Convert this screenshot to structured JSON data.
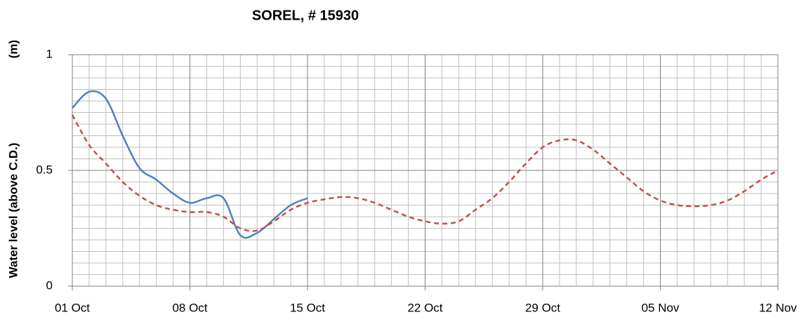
{
  "chart_data": {
    "type": "line",
    "title": "SOREL, # 15930",
    "y_label": "Water level (above C.D.)",
    "y_unit": "(m)",
    "categories": [
      "01 Oct",
      null,
      null,
      null,
      null,
      null,
      null,
      "08 Oct",
      null,
      null,
      null,
      null,
      null,
      null,
      "15 Oct",
      null,
      null,
      null,
      null,
      null,
      null,
      "22 Oct",
      null,
      null,
      null,
      null,
      null,
      null,
      "29 Oct",
      null,
      null,
      null,
      null,
      null,
      null,
      "05 Nov",
      null,
      null,
      null,
      null,
      null,
      null,
      "12 Nov"
    ],
    "series": [
      {
        "color": "#4f81bd",
        "dash": false,
        "values": [
          0.77,
          0.84,
          0.81,
          0.65,
          0.51,
          0.46,
          0.4,
          0.36,
          0.38,
          0.38,
          0.22,
          0.23,
          0.29,
          0.35,
          0.38,
          null,
          null,
          null,
          null,
          null,
          null,
          null,
          null,
          null,
          null,
          null,
          null,
          null,
          null,
          null,
          null,
          null,
          null,
          null,
          null,
          null,
          null,
          null,
          null,
          null,
          null,
          null,
          null
        ]
      },
      {
        "color": "#c0504d",
        "dash": true,
        "values": [
          0.74,
          0.61,
          0.53,
          0.45,
          0.39,
          0.35,
          0.33,
          0.32,
          0.32,
          0.3,
          0.25,
          0.24,
          0.28,
          0.33,
          0.36,
          0.375,
          0.385,
          0.38,
          0.36,
          0.33,
          0.3,
          0.28,
          0.27,
          0.28,
          0.33,
          0.38,
          0.45,
          0.53,
          0.6,
          0.63,
          0.63,
          0.59,
          0.53,
          0.47,
          0.41,
          0.37,
          0.35,
          0.345,
          0.35,
          0.37,
          0.41,
          0.46,
          0.5
        ]
      }
    ],
    "ylim": [
      0,
      1
    ],
    "yticks": [
      0,
      0.5,
      1
    ],
    "minor_yticks": [
      0.05,
      0.1,
      0.15,
      0.2,
      0.25,
      0.3,
      0.35,
      0.4,
      0.45,
      0.55,
      0.6,
      0.65,
      0.7,
      0.75,
      0.8,
      0.85,
      0.9,
      0.95
    ],
    "grid": true
  }
}
